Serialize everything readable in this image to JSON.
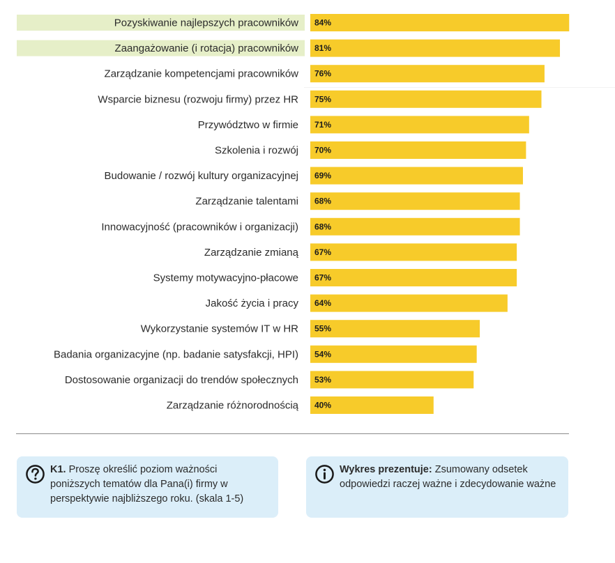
{
  "chart_data": {
    "type": "bar",
    "orientation": "horizontal",
    "categories": [
      "Pozyskiwanie najlepszych pracowników",
      "Zaangażowanie (i rotacja) pracowników",
      "Zarządzanie kompetencjami pracowników",
      "Wsparcie biznesu (rozwoju firmy) przez HR",
      "Przywództwo w firmie",
      "Szkolenia i rozwój",
      "Budowanie / rozwój kultury organizacyjnej",
      "Zarządzanie talentami",
      "Innowacyjność (pracowników i organizacji)",
      "Zarządzanie zmianą",
      "Systemy motywacyjno-płacowe",
      "Jakość życia i pracy",
      "Wykorzystanie systemów IT w HR",
      "Badania organizacyjne (np. badanie satysfakcji, HPI)",
      "Dostosowanie organizacji do trendów społecznych",
      "Zarządzanie różnorodnością"
    ],
    "values": [
      84,
      81,
      76,
      75,
      71,
      70,
      69,
      68,
      68,
      67,
      67,
      64,
      55,
      54,
      53,
      40
    ],
    "value_labels": [
      "84%",
      "81%",
      "76%",
      "75%",
      "71%",
      "70%",
      "69%",
      "68%",
      "68%",
      "67%",
      "67%",
      "64%",
      "55%",
      "54%",
      "53%",
      "40%"
    ],
    "highlighted": [
      true,
      true,
      false,
      false,
      false,
      false,
      false,
      false,
      false,
      false,
      false,
      false,
      false,
      false,
      false,
      false
    ],
    "xlim": [
      0,
      100
    ],
    "unit": "%",
    "grid": false,
    "legend": "none",
    "colors": {
      "bar": "#f7cb2a",
      "highlight": "#e6efc8"
    }
  },
  "notes": {
    "question": {
      "icon": "question-circle-icon",
      "bold": "K1.",
      "text": " Proszę określić poziom ważności poniższych tematów dla Pana(i) firmy w perspektywie najbliższego roku. (skala 1-5)",
      "background": "#dbeef9"
    },
    "info": {
      "icon": "info-circle-icon",
      "bold": "Wykres prezentuje:",
      "text": " Zsumowany odsetek odpowiedzi raczej ważne i zdecydowanie ważne",
      "background": "#dbeef9"
    }
  }
}
